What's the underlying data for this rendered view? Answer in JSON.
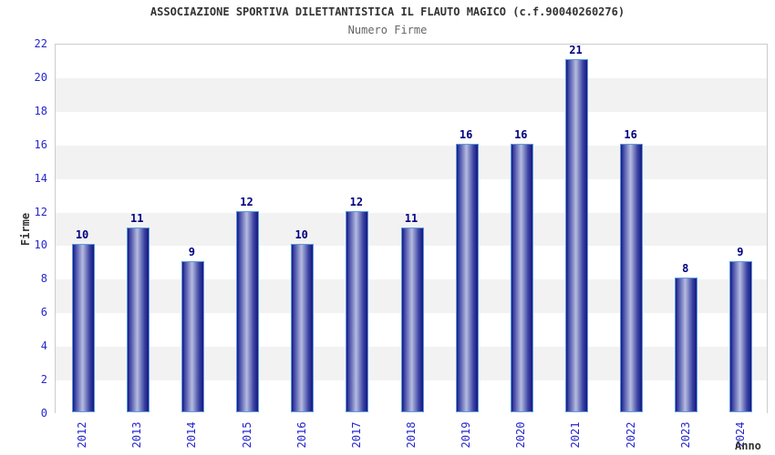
{
  "header": {
    "title": "ASSOCIAZIONE SPORTIVA DILETTANTISTICA IL FLAUTO MAGICO (c.f.90040260276)",
    "subtitle": "Numero Firme"
  },
  "chart_data": {
    "type": "bar",
    "title": "ASSOCIAZIONE SPORTIVA DILETTANTISTICA IL FLAUTO MAGICO (c.f.90040260276)",
    "subtitle": "Numero Firme",
    "xlabel": "Anno",
    "ylabel": "Firme",
    "categories": [
      "2012",
      "2013",
      "2014",
      "2015",
      "2016",
      "2017",
      "2018",
      "2019",
      "2020",
      "2021",
      "2022",
      "2023",
      "2024"
    ],
    "values": [
      10,
      11,
      9,
      12,
      10,
      12,
      11,
      16,
      16,
      21,
      16,
      8,
      9
    ],
    "ylim": [
      0,
      22
    ],
    "ytick_step": 2,
    "yticks": [
      0,
      2,
      4,
      6,
      8,
      10,
      12,
      14,
      16,
      18,
      20,
      22
    ],
    "grid": "alternating-horizontal-bands",
    "legend": "none",
    "bar_labels_shown": true,
    "x_tick_rotation_deg": 90
  },
  "colors": {
    "title": "#333333",
    "subtitle": "#666666",
    "axis_tick_label": "#2626cc",
    "bar_value_label": "#000080",
    "axis_title": "#333333",
    "band_gray": "#f2f2f2",
    "band_white": "#ffffff",
    "plot_border": "#cccccc",
    "bar_border": "#5b9be0",
    "bar_edge_dark": "#17177d",
    "bar_mid": "#3a42a3",
    "bar_highlight": "#b6bcdf"
  }
}
